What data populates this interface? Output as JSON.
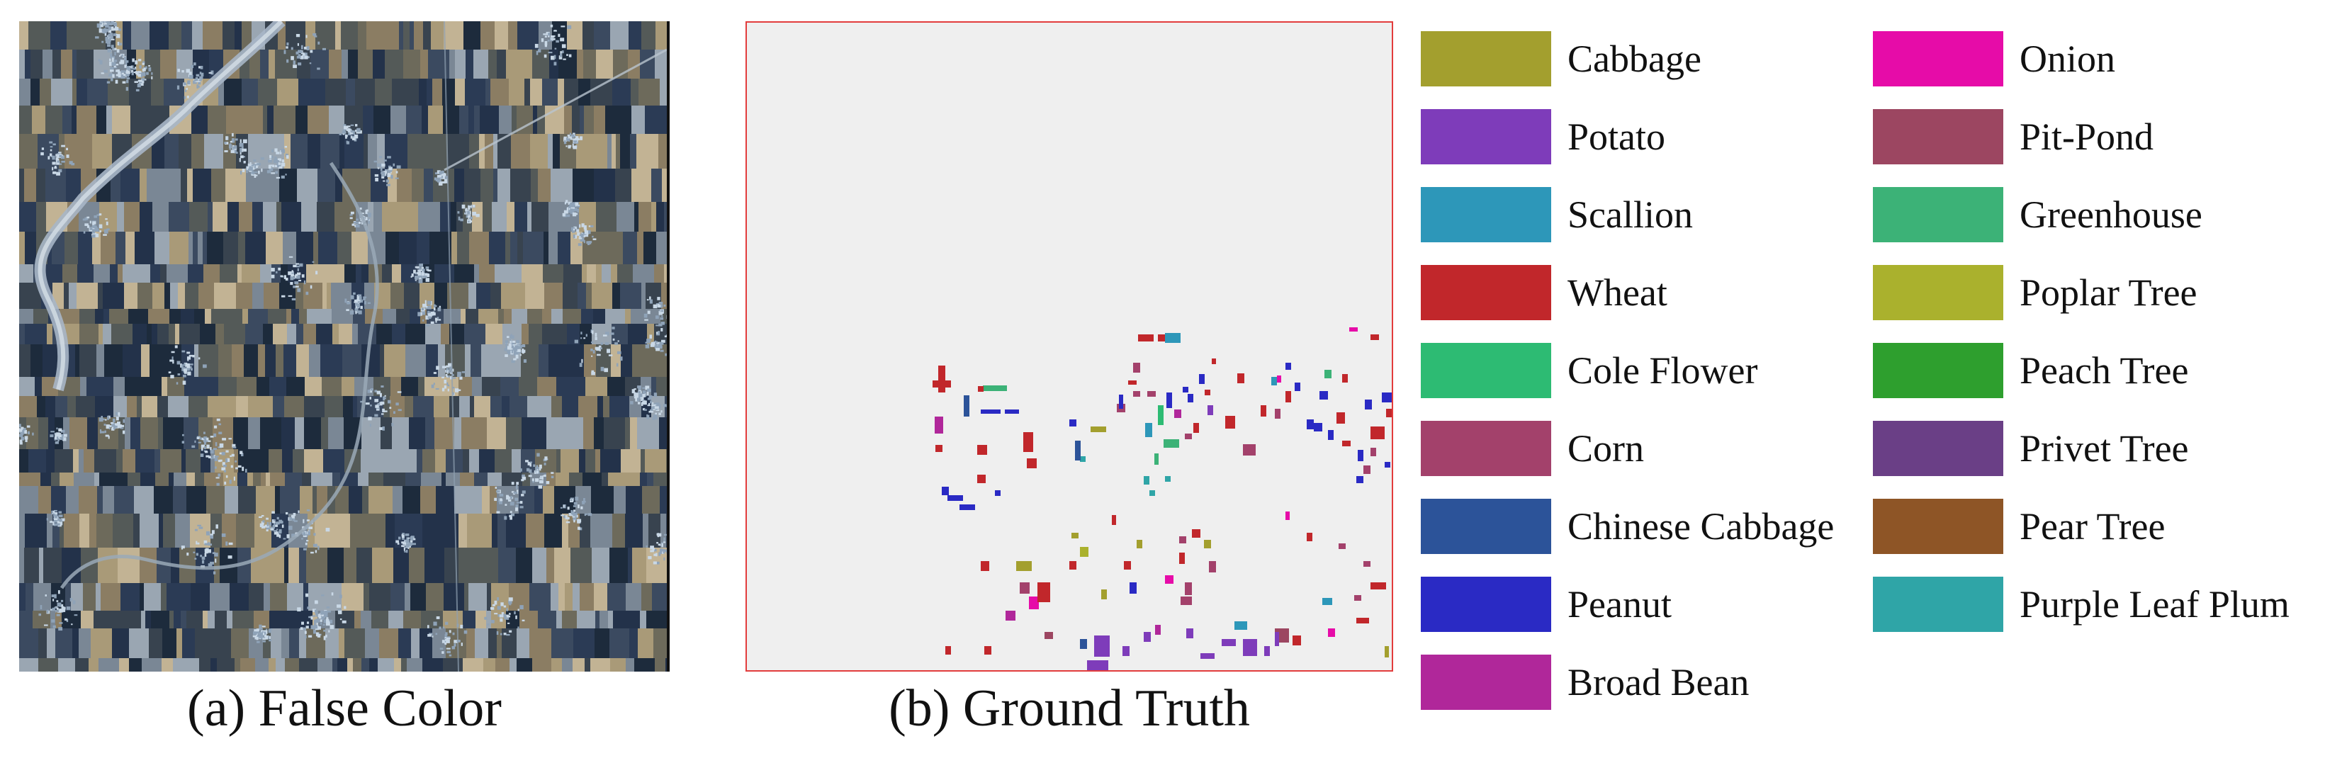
{
  "panels": {
    "false_color": {
      "caption": "(a) False Color"
    },
    "ground_truth": {
      "caption": "(b) Ground Truth"
    }
  },
  "legend": {
    "column_1": [
      {
        "label": "Cabbage",
        "color": "#a39f2e"
      },
      {
        "label": "Potato",
        "color": "#7e3cba"
      },
      {
        "label": "Scallion",
        "color": "#2d97b9"
      },
      {
        "label": "Wheat",
        "color": "#c1272b"
      },
      {
        "label": "Cole Flower",
        "color": "#2dbb73"
      },
      {
        "label": "Corn",
        "color": "#a3416b"
      },
      {
        "label": "Chinese Cabbage",
        "color": "#2c5399"
      },
      {
        "label": "Peanut",
        "color": "#2a2ac4"
      },
      {
        "label": "Broad Bean",
        "color": "#b0279a"
      }
    ],
    "column_2": [
      {
        "label": "Onion",
        "color": "#e60ca8"
      },
      {
        "label": "Pit-Pond",
        "color": "#9c4661"
      },
      {
        "label": "Greenhouse",
        "color": "#3cb277"
      },
      {
        "label": "Poplar Tree",
        "color": "#aab12d"
      },
      {
        "label": "Peach Tree",
        "color": "#2e9f2e"
      },
      {
        "label": "Privet Tree",
        "color": "#6a3f86"
      },
      {
        "label": "Pear Tree",
        "color": "#8e5526"
      },
      {
        "label": "Purple Leaf Plum",
        "color": "#2fa5a7"
      }
    ]
  },
  "colors": {
    "ground_truth_background": "#efefef",
    "ground_truth_border": "#e23c3c"
  }
}
